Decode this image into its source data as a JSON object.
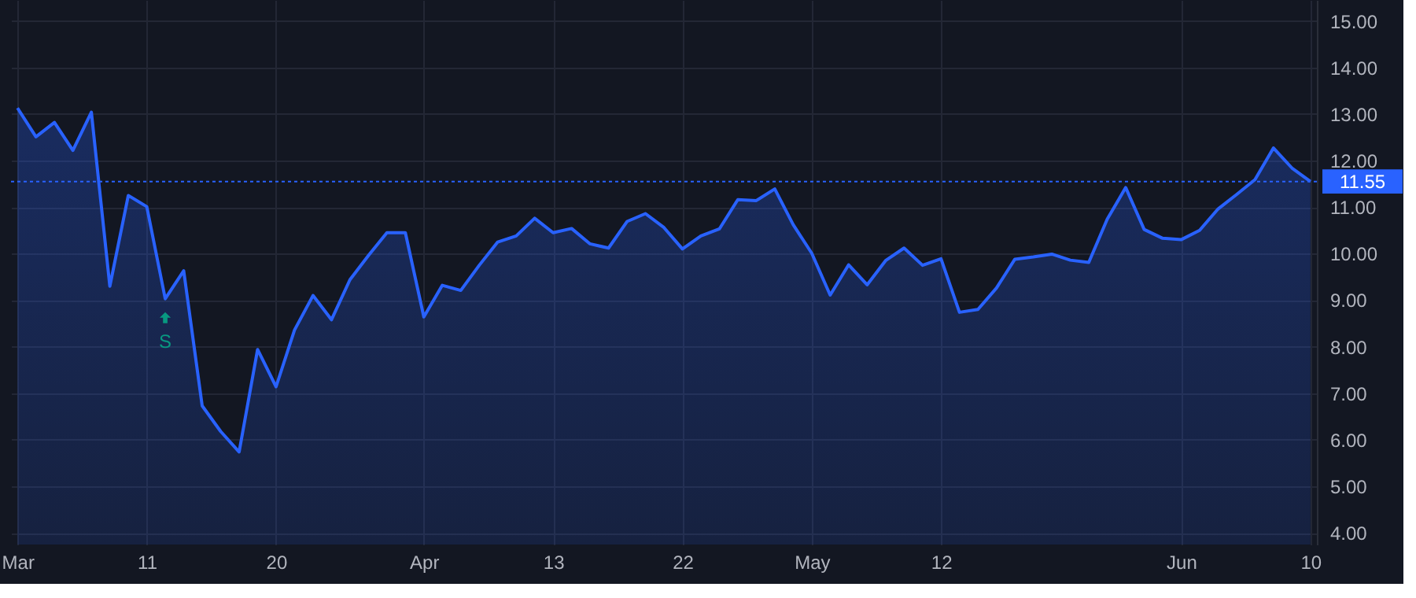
{
  "chart_data": {
    "type": "area",
    "categories": [
      "Mar",
      null,
      null,
      null,
      null,
      null,
      null,
      "11",
      null,
      null,
      null,
      null,
      null,
      null,
      "20",
      null,
      null,
      null,
      null,
      null,
      null,
      null,
      "Apr",
      null,
      null,
      null,
      null,
      null,
      null,
      "13",
      null,
      null,
      null,
      null,
      null,
      null,
      "22",
      null,
      null,
      null,
      null,
      null,
      null,
      "May",
      null,
      null,
      null,
      null,
      null,
      null,
      "12",
      null,
      null,
      null,
      null,
      null,
      null,
      null,
      null,
      null,
      null,
      null,
      null,
      "Jun",
      null,
      null,
      null,
      null,
      null,
      null,
      "10"
    ],
    "series": [
      {
        "color": "#2962ff",
        "values": [
          13.13,
          12.51,
          12.82,
          12.22,
          13.04,
          9.3,
          11.25,
          11.01,
          9.03,
          9.63,
          6.73,
          6.18,
          5.74,
          7.94,
          7.14,
          8.36,
          9.1,
          8.58,
          9.44,
          9.96,
          10.45,
          10.45,
          8.64,
          9.32,
          9.21,
          9.75,
          10.25,
          10.38,
          10.76,
          10.45,
          10.54,
          10.21,
          10.12,
          10.69,
          10.86,
          10.56,
          10.1,
          10.38,
          10.53,
          11.16,
          11.14,
          11.39,
          10.62,
          10.01,
          9.11,
          9.76,
          9.33,
          9.85,
          10.12,
          9.75,
          9.89,
          8.74,
          8.8,
          9.26,
          9.88,
          9.93,
          9.99,
          9.86,
          9.81,
          10.74,
          11.42,
          10.52,
          10.33,
          10.3,
          10.5,
          10.96,
          11.27,
          11.59,
          12.27,
          11.84,
          11.55
        ]
      }
    ],
    "ylim": [
      3.75,
      15.45
    ],
    "yticks": [
      {
        "value": 4,
        "label": "4.00"
      },
      {
        "value": 5,
        "label": "5.00"
      },
      {
        "value": 6,
        "label": "6.00"
      },
      {
        "value": 7,
        "label": "7.00"
      },
      {
        "value": 8,
        "label": "8.00"
      },
      {
        "value": 9,
        "label": "9.00"
      },
      {
        "value": 10,
        "label": "10.00"
      },
      {
        "value": 11,
        "label": "11.00"
      },
      {
        "value": 12,
        "label": "12.00"
      },
      {
        "value": 13,
        "label": "13.00"
      },
      {
        "value": 14,
        "label": "14.00"
      },
      {
        "value": 15,
        "label": "15.00"
      }
    ],
    "ref_lines": [
      {
        "axis": "y",
        "value": 11.55,
        "label": "11.55",
        "color": "#2962ff",
        "line_style": "dotted"
      }
    ],
    "annotations": [
      "S"
    ],
    "grid": true,
    "marker": "none",
    "line_style": "solid"
  }
}
